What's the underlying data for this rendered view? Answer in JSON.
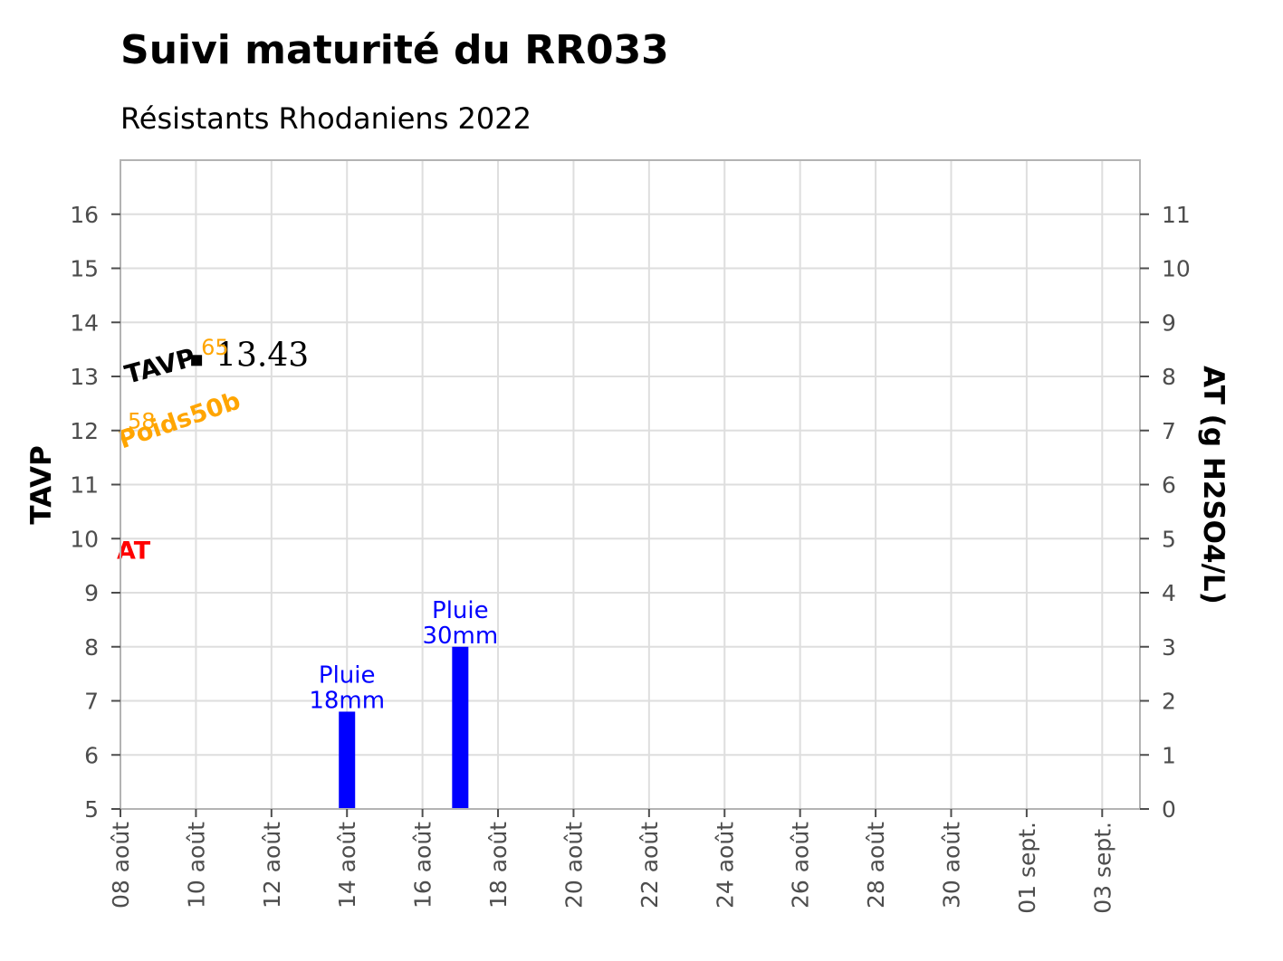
{
  "chart_data": {
    "type": "bar",
    "title": "Suivi maturité du RR033",
    "subtitle": "Résistants Rhodaniens 2022",
    "ylabel": "TAVP",
    "y2label": "AT (g H2SO4/L)",
    "ylim": [
      5,
      17
    ],
    "y2lim": [
      0,
      12
    ],
    "yticks": [
      5,
      6,
      7,
      8,
      9,
      10,
      11,
      12,
      13,
      14,
      15,
      16
    ],
    "y2ticks": [
      0,
      1,
      2,
      3,
      4,
      5,
      6,
      7,
      8,
      9,
      10,
      11
    ],
    "xlim": [
      "2022-08-08",
      "2022-09-04"
    ],
    "xticks": [
      "2022-08-08",
      "2022-08-10",
      "2022-08-12",
      "2022-08-14",
      "2022-08-16",
      "2022-08-18",
      "2022-08-20",
      "2022-08-22",
      "2022-08-24",
      "2022-08-26",
      "2022-08-28",
      "2022-08-30",
      "2022-09-01",
      "2022-09-03"
    ],
    "xtick_labels": [
      "08 août",
      "10 août",
      "12 août",
      "14 août",
      "16 août",
      "18 août",
      "20 août",
      "22 août",
      "24 août",
      "26 août",
      "28 août",
      "30 août",
      "01 sept.",
      "03 sept."
    ],
    "grid": true,
    "rain": [
      {
        "date": "2022-08-14",
        "mm": 18,
        "label": [
          "Pluie",
          "18mm"
        ]
      },
      {
        "date": "2022-08-17",
        "mm": 30,
        "label": [
          "Pluie",
          "30mm"
        ]
      }
    ],
    "rain_color": "#0000ff",
    "series": [
      {
        "name": "TAVP",
        "color": "#000000",
        "points": [
          {
            "x": "2022-08-08",
            "y": 13.0
          },
          {
            "x": "2022-08-11",
            "y": 13.43
          }
        ],
        "value_label": "13.43"
      },
      {
        "name": "Poids50b",
        "color": "#ffa500",
        "points": [
          {
            "x": "2022-08-08",
            "y": 11.8,
            "label": "58"
          },
          {
            "x": "2022-08-11",
            "y": 13.4,
            "label": "65"
          }
        ]
      },
      {
        "name": "AT",
        "color": "#ff0000",
        "points": []
      }
    ]
  }
}
